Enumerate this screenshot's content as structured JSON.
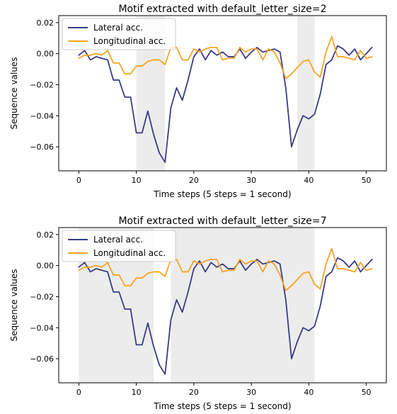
{
  "colors": {
    "lateral": "#3a3b86",
    "longitudinal": "#f5a425",
    "shade": "#ececec",
    "frame": "#000000"
  },
  "chart_data": [
    {
      "type": "line",
      "title": "Motif extracted with default_letter_size=2",
      "xlabel": "Time steps (5 steps = 1 second)",
      "ylabel": "Sequence values",
      "xlim": [
        -3.5,
        53.5
      ],
      "ylim": [
        -0.0755,
        0.0245
      ],
      "xticks": [
        0,
        10,
        20,
        30,
        40,
        50
      ],
      "xtick_labels": [
        "0",
        "10",
        "20",
        "30",
        "40",
        "50"
      ],
      "yticks": [
        0.02,
        0.0,
        -0.02,
        -0.04,
        -0.06
      ],
      "ytick_labels": [
        "0.02",
        "0.00",
        "−0.02",
        "−0.04",
        "−0.06"
      ],
      "grid": false,
      "legend_position": "top-left",
      "shaded_x_ranges": [
        [
          10,
          15
        ],
        [
          38,
          41
        ]
      ],
      "x": [
        0,
        1,
        2,
        3,
        4,
        5,
        6,
        7,
        8,
        9,
        10,
        11,
        12,
        13,
        14,
        15,
        16,
        17,
        18,
        19,
        20,
        21,
        22,
        23,
        24,
        25,
        26,
        27,
        28,
        29,
        30,
        31,
        32,
        33,
        34,
        35,
        36,
        37,
        38,
        39,
        40,
        41,
        42,
        43,
        44,
        45,
        46,
        47,
        48,
        49,
        50,
        51
      ],
      "series": [
        {
          "name": "Lateral acc.",
          "values": [
            -0.001,
            0.002,
            -0.004,
            -0.002,
            -0.003,
            -0.004,
            -0.017,
            -0.017,
            -0.028,
            -0.028,
            -0.051,
            -0.051,
            -0.037,
            -0.052,
            -0.064,
            -0.07,
            -0.035,
            -0.022,
            -0.03,
            -0.017,
            -0.002,
            0.003,
            -0.004,
            0.002,
            -0.001,
            0.001,
            -0.002,
            -0.002,
            0.003,
            -0.003,
            0.001,
            0.004,
            0.001,
            0.002,
            0.003,
            0.001,
            -0.022,
            -0.06,
            -0.049,
            -0.04,
            -0.042,
            -0.039,
            -0.026,
            -0.007,
            -0.004,
            0.005,
            0.003,
            -0.001,
            0.003,
            -0.004,
            0.0,
            0.004
          ]
        },
        {
          "name": "Longitudinal acc.",
          "values": [
            -0.003,
            -0.001,
            -0.001,
            0.0,
            -0.001,
            0.002,
            -0.006,
            -0.006,
            -0.013,
            -0.013,
            -0.008,
            -0.008,
            -0.005,
            -0.004,
            -0.004,
            -0.007,
            0.004,
            0.004,
            -0.004,
            -0.004,
            0.003,
            0.001,
            0.003,
            0.004,
            0.004,
            -0.004,
            -0.003,
            -0.003,
            0.004,
            0.001,
            0.003,
            0.003,
            -0.004,
            0.003,
            0.001,
            -0.006,
            -0.016,
            -0.013,
            -0.009,
            -0.005,
            -0.004,
            -0.012,
            -0.015,
            0.001,
            0.011,
            -0.002,
            -0.002,
            -0.003,
            -0.004,
            0.002,
            -0.003,
            -0.002
          ]
        }
      ]
    },
    {
      "type": "line",
      "title": "Motif extracted with default_letter_size=7",
      "xlabel": "Time steps (5 steps = 1 second)",
      "ylabel": "Sequence values",
      "xlim": [
        -3.5,
        53.5
      ],
      "ylim": [
        -0.0755,
        0.0245
      ],
      "xticks": [
        0,
        10,
        20,
        30,
        40,
        50
      ],
      "xtick_labels": [
        "0",
        "10",
        "20",
        "30",
        "40",
        "50"
      ],
      "yticks": [
        0.02,
        0.0,
        -0.02,
        -0.04,
        -0.06
      ],
      "ytick_labels": [
        "0.02",
        "0.00",
        "−0.02",
        "−0.04",
        "−0.06"
      ],
      "grid": false,
      "legend_position": "top-left",
      "shaded_x_ranges": [
        [
          0,
          13
        ],
        [
          16,
          41
        ]
      ],
      "x": [
        0,
        1,
        2,
        3,
        4,
        5,
        6,
        7,
        8,
        9,
        10,
        11,
        12,
        13,
        14,
        15,
        16,
        17,
        18,
        19,
        20,
        21,
        22,
        23,
        24,
        25,
        26,
        27,
        28,
        29,
        30,
        31,
        32,
        33,
        34,
        35,
        36,
        37,
        38,
        39,
        40,
        41,
        42,
        43,
        44,
        45,
        46,
        47,
        48,
        49,
        50,
        51
      ],
      "series": [
        {
          "name": "Lateral acc.",
          "values": [
            -0.001,
            0.002,
            -0.004,
            -0.002,
            -0.003,
            -0.004,
            -0.017,
            -0.017,
            -0.028,
            -0.028,
            -0.051,
            -0.051,
            -0.037,
            -0.052,
            -0.064,
            -0.07,
            -0.035,
            -0.022,
            -0.03,
            -0.017,
            -0.002,
            0.003,
            -0.004,
            0.002,
            -0.001,
            0.001,
            -0.002,
            -0.002,
            0.003,
            -0.003,
            0.001,
            0.004,
            0.001,
            0.002,
            0.003,
            0.001,
            -0.022,
            -0.06,
            -0.049,
            -0.04,
            -0.042,
            -0.039,
            -0.026,
            -0.007,
            -0.004,
            0.005,
            0.003,
            -0.001,
            0.003,
            -0.004,
            0.0,
            0.004
          ]
        },
        {
          "name": "Longitudinal acc.",
          "values": [
            -0.003,
            -0.001,
            -0.001,
            0.0,
            -0.001,
            0.002,
            -0.006,
            -0.006,
            -0.013,
            -0.013,
            -0.008,
            -0.008,
            -0.005,
            -0.004,
            -0.004,
            -0.007,
            0.004,
            0.004,
            -0.004,
            -0.004,
            0.003,
            0.001,
            0.003,
            0.004,
            0.004,
            -0.004,
            -0.003,
            -0.003,
            0.004,
            0.001,
            0.003,
            0.003,
            -0.004,
            0.003,
            0.001,
            -0.006,
            -0.016,
            -0.013,
            -0.009,
            -0.005,
            -0.004,
            -0.012,
            -0.015,
            0.001,
            0.011,
            -0.002,
            -0.002,
            -0.003,
            -0.004,
            0.002,
            -0.003,
            -0.002
          ]
        }
      ]
    }
  ]
}
